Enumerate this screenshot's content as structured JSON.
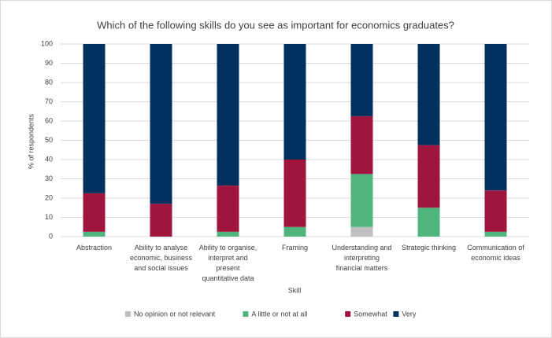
{
  "chart_data": {
    "type": "stacked_bar",
    "title": "Which of the following skills do you see as important for economics graduates?",
    "x_label": "Skill",
    "y_label": "% of respondents",
    "categories": [
      "Abstraction",
      "Ability to analyse\neconomic, business\nand social issues",
      "Ability to organise,\ninterpret and\npresent\nquantitative data",
      "Framing",
      "Understanding and\ninterpreting\nfinancial matters",
      "Strategic thinking",
      "Communication of\neconomic ideas"
    ],
    "series": [
      {
        "name": "No opinion or not relevant",
        "color": "#bfbfbf",
        "values": [
          0,
          0,
          0,
          0,
          5,
          0,
          0
        ]
      },
      {
        "name": "A little or not at all",
        "color": "#4fb57d",
        "values": [
          2.5,
          0,
          2.5,
          5,
          27.5,
          15,
          2.5
        ]
      },
      {
        "name": "Somewhat",
        "color": "#a0153e",
        "values": [
          20,
          17,
          24,
          35,
          30,
          32.5,
          21.5
        ]
      },
      {
        "name": "Very",
        "color": "#00305e",
        "values": [
          77.5,
          83,
          73.5,
          60,
          37.5,
          52.5,
          76
        ]
      }
    ],
    "ylim": [
      0,
      100
    ],
    "yticks": [
      0,
      10,
      20,
      30,
      40,
      50,
      60,
      70,
      80,
      90,
      100
    ],
    "grid": true,
    "legend": "bottom"
  }
}
